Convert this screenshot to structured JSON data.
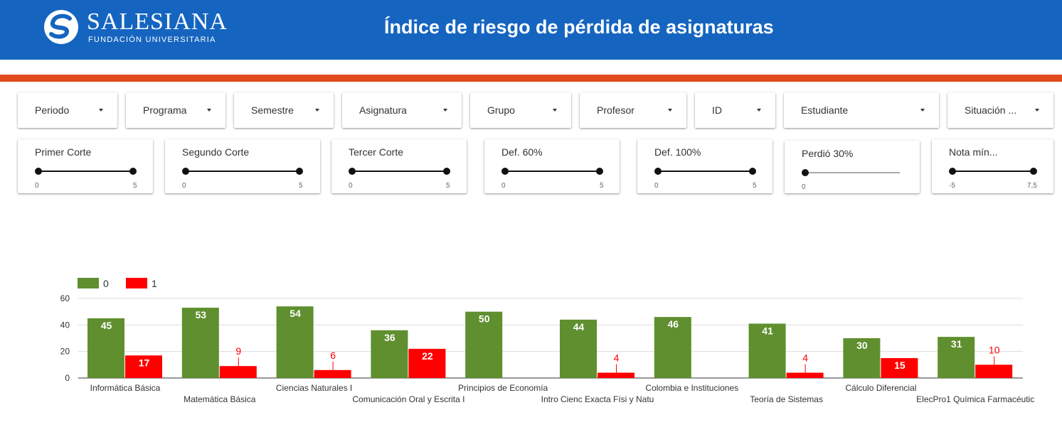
{
  "header": {
    "logo_word": "SALESIANA",
    "logo_sub": "FUNDACIÓN  UNIVERSITARIA",
    "title": "Índice de riesgo de pérdida de asignaturas"
  },
  "colors": {
    "header_bg": "#1565c0",
    "accent": "#e04a1c",
    "series_0": "#5f8f2e",
    "series_1": "#ff0000"
  },
  "filters": {
    "dropdowns": [
      {
        "label": "Periodo"
      },
      {
        "label": "Programa"
      },
      {
        "label": "Semestre"
      },
      {
        "label": "Asignatura"
      },
      {
        "label": "Grupo"
      },
      {
        "label": "Profesor"
      },
      {
        "label": "ID"
      },
      {
        "label": "Estudiante"
      },
      {
        "label": "Situación ..."
      }
    ],
    "sliders": [
      {
        "label": "Primer Corte",
        "min": "0",
        "max": "5"
      },
      {
        "label": "Segundo Corte",
        "min": "0",
        "max": "5"
      },
      {
        "label": "Tercer Corte",
        "min": "0",
        "max": "5"
      },
      {
        "label": "Def. 60%",
        "min": "0",
        "max": "5"
      },
      {
        "label": "Def. 100%",
        "min": "0",
        "max": "5"
      },
      {
        "label": "Perdió 30%",
        "min": "0",
        "max": ""
      },
      {
        "label": "Nota mín...",
        "min": "-5",
        "max": "7,5"
      }
    ]
  },
  "chart_data": {
    "type": "bar",
    "categories": [
      "Informática Básica",
      "Matemática Básica",
      "Ciencias Naturales I",
      "Comunicación Oral y Escrita I",
      "Principios de Economía",
      "Intro Cienc Exacta Físi y Natu",
      "Colombia e Instituciones",
      "Teoría de Sistemas",
      "Cálculo Diferencial",
      "ElecPro1 Química Farmacéutic"
    ],
    "series": [
      {
        "name": "0",
        "values": [
          45,
          53,
          54,
          36,
          50,
          44,
          46,
          41,
          30,
          31
        ]
      },
      {
        "name": "1",
        "values": [
          17,
          9,
          6,
          22,
          null,
          4,
          null,
          4,
          15,
          10
        ]
      }
    ],
    "yticks": [
      "0",
      "20",
      "40",
      "60"
    ],
    "ylim": [
      0,
      60
    ],
    "grid": true,
    "legend_position": "top-left"
  }
}
